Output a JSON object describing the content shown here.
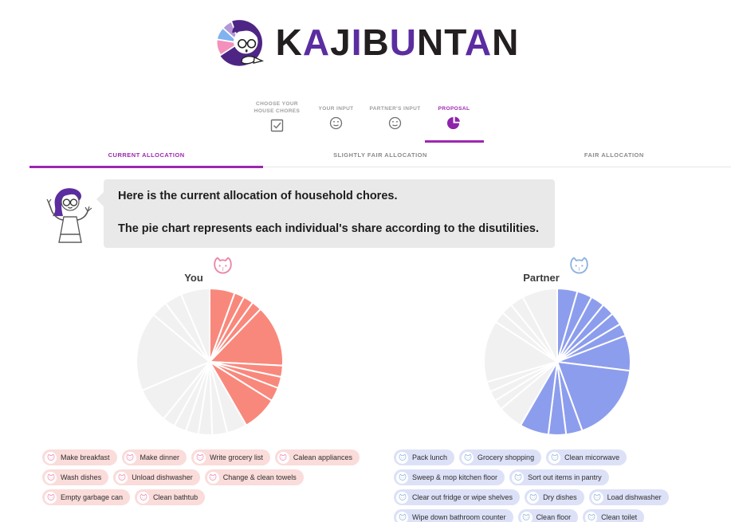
{
  "brand": {
    "letters": [
      {
        "ch": "K",
        "color": "#231f20"
      },
      {
        "ch": "A",
        "color": "#5b2da0"
      },
      {
        "ch": "J",
        "color": "#231f20"
      },
      {
        "ch": "I",
        "color": "#5b2da0"
      },
      {
        "ch": "B",
        "color": "#231f20"
      },
      {
        "ch": "U",
        "color": "#5b2da0"
      },
      {
        "ch": "N",
        "color": "#231f20"
      },
      {
        "ch": "T",
        "color": "#231f20"
      },
      {
        "ch": "A",
        "color": "#5b2da0"
      },
      {
        "ch": "N",
        "color": "#231f20"
      }
    ],
    "accent": "#9c27b0"
  },
  "stepper": {
    "steps": [
      {
        "label_lines": [
          "CHOOSE YOUR",
          "HOUSE CHORES"
        ],
        "icon": "checkbox-icon",
        "active": false
      },
      {
        "label_lines": [
          "YOUR INPUT"
        ],
        "icon": "smiley-icon",
        "active": false
      },
      {
        "label_lines": [
          "PARTNER'S INPUT"
        ],
        "icon": "smiley-icon",
        "active": false
      },
      {
        "label_lines": [
          "PROPOSAL"
        ],
        "icon": "pie-icon",
        "active": true
      }
    ]
  },
  "tabs": [
    {
      "label": "CURRENT ALLOCATION",
      "active": true
    },
    {
      "label": "SLIGHTLY FAIR ALLOCATION",
      "active": false
    },
    {
      "label": "FAIR ALLOCATION",
      "active": false
    }
  ],
  "message": {
    "line1": "Here is the current allocation of household chores.",
    "line2": "The pie chart represents each individual's share according to the disutilities."
  },
  "panels": [
    {
      "owner": "You",
      "accent": "#f9887c",
      "chip_bg": "#fadcda",
      "cat_color": "#ec86aa",
      "chores": [
        "Make breakfast",
        "Make dinner",
        "Write grocery list",
        "Calean appliances",
        "Wash dishes",
        "Unload dishwasher",
        "Change & clean towels",
        "Empty garbage can",
        "Clean bathtub"
      ]
    },
    {
      "owner": "Partner",
      "accent": "#8d9ded",
      "chip_bg": "#dde1f7",
      "cat_color": "#8fb3de",
      "chores": [
        "Pack lunch",
        "Grocery shopping",
        "Clean micorwave",
        "Sweep & mop kitchen floor",
        "Sort out items in pantry",
        "Clear out fridge or wipe shelves",
        "Dry dishes",
        "Load dishwasher",
        "Wipe down bathroom counter",
        "Clean floor",
        "Clean toilet"
      ]
    }
  ],
  "chart_data": [
    {
      "type": "pie",
      "title": "You",
      "owner_color": "#f9887c",
      "other_color": "#f1f1f1",
      "start_at": "12-oclock, clockwise",
      "own_share_deg": 150,
      "own_share_percent": 41.7,
      "slices": [
        {
          "label": "Make breakfast",
          "deg": 20,
          "own": true
        },
        {
          "label": "Make dinner",
          "deg": 8,
          "own": true
        },
        {
          "label": "Write grocery list",
          "deg": 8,
          "own": true
        },
        {
          "label": "Calean appliances",
          "deg": 8,
          "own": true
        },
        {
          "label": "Wash dishes",
          "deg": 49,
          "own": true
        },
        {
          "label": "Unload dishwasher",
          "deg": 9,
          "own": true
        },
        {
          "label": "Change & clean towels",
          "deg": 9,
          "own": true
        },
        {
          "label": "Empty garbage can",
          "deg": 11,
          "own": true
        },
        {
          "label": "Clean bathtub",
          "deg": 28,
          "own": true
        },
        {
          "label": "Pack lunch",
          "deg": 16,
          "own": false
        },
        {
          "label": "Grocery shopping",
          "deg": 12,
          "own": false
        },
        {
          "label": "Clean micorwave",
          "deg": 11,
          "own": false
        },
        {
          "label": "Sweep & mop kitchen floor",
          "deg": 10,
          "own": false
        },
        {
          "label": "Sort out items in pantry",
          "deg": 10,
          "own": false
        },
        {
          "label": "Clear out fridge or wipe shelves",
          "deg": 10,
          "own": false
        },
        {
          "label": "Dry dishes",
          "deg": 28,
          "own": false
        },
        {
          "label": "Load dishwasher",
          "deg": 63,
          "own": false
        },
        {
          "label": "Wipe down bathroom counter",
          "deg": 13,
          "own": false
        },
        {
          "label": "Clean floor",
          "deg": 14,
          "own": false
        },
        {
          "label": "Clean toilet",
          "deg": 23,
          "own": false
        }
      ]
    },
    {
      "type": "pie",
      "title": "Partner",
      "owner_color": "#8d9ded",
      "other_color": "#f1f1f1",
      "start_at": "12-oclock, clockwise",
      "own_share_deg": 210,
      "own_share_percent": 58.3,
      "slices": [
        {
          "label": "Pack lunch",
          "deg": 16,
          "own": true
        },
        {
          "label": "Grocery shopping",
          "deg": 12,
          "own": true
        },
        {
          "label": "Clean micorwave",
          "deg": 11,
          "own": true
        },
        {
          "label": "Sweep & mop kitchen floor",
          "deg": 10,
          "own": true
        },
        {
          "label": "Sort out items in pantry",
          "deg": 10,
          "own": true
        },
        {
          "label": "Clear out fridge or wipe shelves",
          "deg": 10,
          "own": true
        },
        {
          "label": "Dry dishes",
          "deg": 28,
          "own": true
        },
        {
          "label": "Load dishwasher",
          "deg": 63,
          "own": true
        },
        {
          "label": "Wipe down bathroom counter",
          "deg": 13,
          "own": true
        },
        {
          "label": "Clean floor",
          "deg": 14,
          "own": true
        },
        {
          "label": "Clean toilet",
          "deg": 23,
          "own": true
        },
        {
          "label": "Make breakfast",
          "deg": 20,
          "own": false
        },
        {
          "label": "Make dinner",
          "deg": 8,
          "own": false
        },
        {
          "label": "Write grocery list",
          "deg": 8,
          "own": false
        },
        {
          "label": "Calean appliances",
          "deg": 8,
          "own": false
        },
        {
          "label": "Wash dishes",
          "deg": 49,
          "own": false
        },
        {
          "label": "Unload dishwasher",
          "deg": 9,
          "own": false
        },
        {
          "label": "Change & clean towels",
          "deg": 9,
          "own": false
        },
        {
          "label": "Empty garbage can",
          "deg": 11,
          "own": false
        },
        {
          "label": "Clean bathtub",
          "deg": 28,
          "own": false
        }
      ]
    }
  ]
}
